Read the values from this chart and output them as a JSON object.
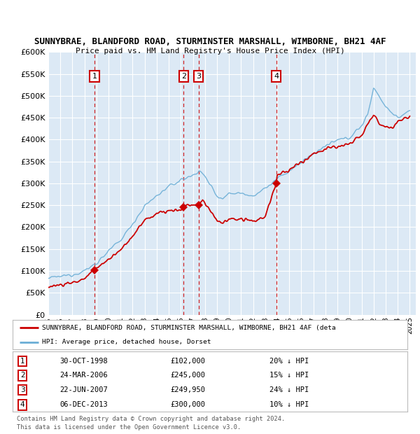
{
  "title1": "SUNNYBRAE, BLANDFORD ROAD, STURMINSTER MARSHALL, WIMBORNE, BH21 4AF",
  "title2": "Price paid vs. HM Land Registry's House Price Index (HPI)",
  "hpi_color": "#6baed6",
  "price_color": "#cc0000",
  "transactions": [
    {
      "num": 1,
      "date": "30-OCT-1998",
      "price": 102000,
      "pct": "20%",
      "x_year": 1998.83
    },
    {
      "num": 2,
      "date": "24-MAR-2006",
      "price": 245000,
      "pct": "15%",
      "x_year": 2006.23
    },
    {
      "num": 3,
      "date": "22-JUN-2007",
      "price": 249950,
      "pct": "24%",
      "x_year": 2007.47
    },
    {
      "num": 4,
      "date": "06-DEC-2013",
      "price": 300000,
      "pct": "10%",
      "x_year": 2013.92
    }
  ],
  "legend_line1": "SUNNYBRAE, BLANDFORD ROAD, STURMINSTER MARSHALL, WIMBORNE, BH21 4AF (deta",
  "legend_line2": "HPI: Average price, detached house, Dorset",
  "footer1": "Contains HM Land Registry data © Crown copyright and database right 2024.",
  "footer2": "This data is licensed under the Open Government Licence v3.0.",
  "yticks": [
    0,
    50000,
    100000,
    150000,
    200000,
    250000,
    300000,
    350000,
    400000,
    450000,
    500000,
    550000,
    600000
  ],
  "ylim": [
    0,
    600000
  ],
  "xmin": 1995,
  "xmax": 2025.5
}
